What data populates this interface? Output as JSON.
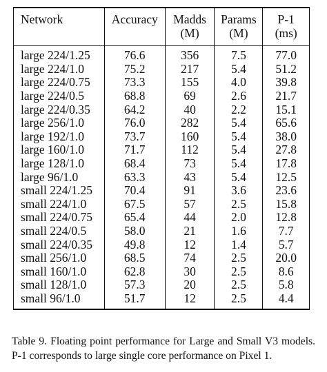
{
  "table": {
    "headers": [
      {
        "line1": "Network",
        "line2": ""
      },
      {
        "line1": "Accuracy",
        "line2": ""
      },
      {
        "line1": "Madds",
        "line2": "(M)"
      },
      {
        "line1": "Params",
        "line2": "(M)"
      },
      {
        "line1": "P-1",
        "line2": "(ms)"
      }
    ],
    "rows": [
      [
        "large 224/1.25",
        "76.6",
        "356",
        "7.5",
        "77.0"
      ],
      [
        "large 224/1.0",
        "75.2",
        "217",
        "5.4",
        "51.2"
      ],
      [
        "large 224/0.75",
        "73.3",
        "155",
        "4.0",
        "39.8"
      ],
      [
        "large 224/0.5",
        "68.8",
        "69",
        "2.6",
        "21.7"
      ],
      [
        "large 224/0.35",
        "64.2",
        "40",
        "2.2",
        "15.1"
      ],
      [
        "large 256/1.0",
        "76.0",
        "282",
        "5.4",
        "65.6"
      ],
      [
        "large 192/1.0",
        "73.7",
        "160",
        "5.4",
        "38.0"
      ],
      [
        "large 160/1.0",
        "71.7",
        "112",
        "5.4",
        "27.8"
      ],
      [
        "large 128/1.0",
        "68.4",
        "73",
        "5.4",
        "17.8"
      ],
      [
        "large 96/1.0",
        "63.3",
        "43",
        "5.4",
        "12.5"
      ],
      [
        "small 224/1.25",
        "70.4",
        "91",
        "3.6",
        "23.6"
      ],
      [
        "small 224/1.0",
        "67.5",
        "57",
        "2.5",
        "15.8"
      ],
      [
        "small 224/0.75",
        "65.4",
        "44",
        "2.0",
        "12.8"
      ],
      [
        "small 224/0.5",
        "58.0",
        "21",
        "1.6",
        "7.7"
      ],
      [
        "small 224/0.35",
        "49.8",
        "12",
        "1.4",
        "5.7"
      ],
      [
        "small 256/1.0",
        "68.5",
        "74",
        "2.5",
        "20.0"
      ],
      [
        "small 160/1.0",
        "62.8",
        "30",
        "2.5",
        "8.6"
      ],
      [
        "small 128/1.0",
        "57.3",
        "20",
        "2.5",
        "5.8"
      ],
      [
        "small 96/1.0",
        "51.7",
        "12",
        "2.5",
        "4.4"
      ]
    ]
  },
  "caption": "Table 9. Floating point performance for Large and Small V3 models. P-1 corresponds to large single core performance on Pixel 1."
}
